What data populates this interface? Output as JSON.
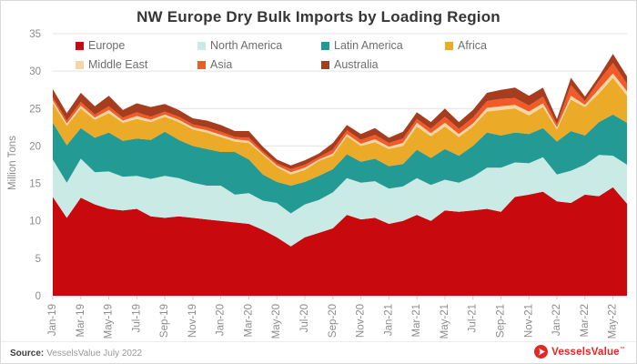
{
  "title": "NW Europe Dry Bulk Imports by Loading Region",
  "source": {
    "label": "Source:",
    "text": "VesselsValue July 2022"
  },
  "logo": {
    "text": "VesselsValue",
    "trademark": "™",
    "color": "#e42627"
  },
  "axis": {
    "tick_color": "#8c8c8c",
    "grid_color": "#e4e4e4",
    "tickmark_color": "#cccccc"
  },
  "chart_data": {
    "type": "area",
    "stacked": true,
    "title": "NW Europe Dry Bulk Imports by Loading Region",
    "xlabel": "",
    "ylabel": "Million Tons",
    "ylim": [
      0,
      35
    ],
    "ytick_step": 5,
    "grid": true,
    "legend_position": "top-left-inside-two-rows",
    "xtick_every": 2,
    "x": [
      "Jan-19",
      "Feb-19",
      "Mar-19",
      "Apr-19",
      "May-19",
      "Jun-19",
      "Jul-19",
      "Aug-19",
      "Sep-19",
      "Oct-19",
      "Nov-19",
      "Dec-19",
      "Jan-20",
      "Feb-20",
      "Mar-20",
      "Apr-20",
      "May-20",
      "Jun-20",
      "Jul-20",
      "Aug-20",
      "Sep-20",
      "Oct-20",
      "Nov-20",
      "Dec-20",
      "Jan-21",
      "Feb-21",
      "Mar-21",
      "Apr-21",
      "May-21",
      "Jun-21",
      "Jul-21",
      "Aug-21",
      "Sep-21",
      "Oct-21",
      "Nov-21",
      "Dec-21",
      "Jan-22",
      "Feb-22",
      "Mar-22",
      "Apr-22",
      "May-22",
      "Jun-22"
    ],
    "series": [
      {
        "name": "Europe",
        "color": "#c80a0f",
        "values": [
          13.2,
          10.4,
          13.1,
          12.2,
          11.6,
          11.4,
          11.6,
          10.6,
          10.4,
          10.6,
          10.4,
          10.2,
          10.0,
          9.8,
          9.6,
          8.8,
          7.8,
          6.6,
          7.8,
          8.4,
          9.0,
          10.8,
          10.2,
          10.4,
          9.6,
          10.0,
          10.8,
          10.0,
          11.4,
          11.2,
          11.4,
          11.6,
          11.2,
          13.2,
          13.5,
          13.9,
          12.6,
          12.4,
          13.5,
          13.3,
          14.5,
          12.3
        ]
      },
      {
        "name": "North America",
        "color": "#c9eae5",
        "values": [
          5.0,
          4.7,
          5.2,
          4.3,
          5.0,
          4.5,
          4.4,
          5.0,
          5.6,
          5.1,
          4.7,
          4.5,
          4.7,
          3.7,
          4.1,
          3.9,
          4.6,
          4.4,
          4.4,
          4.4,
          4.8,
          4.9,
          4.9,
          4.9,
          4.7,
          4.6,
          4.9,
          4.8,
          4.1,
          3.9,
          4.5,
          5.5,
          5.9,
          4.6,
          4.2,
          4.6,
          3.6,
          4.3,
          4.0,
          5.5,
          4.2,
          5.2
        ]
      },
      {
        "name": "Latin America",
        "color": "#239a93",
        "values": [
          4.9,
          5.0,
          4.1,
          4.6,
          5.2,
          4.8,
          5.0,
          5.2,
          5.9,
          5.1,
          4.9,
          4.9,
          4.5,
          5.7,
          4.5,
          3.5,
          2.8,
          3.7,
          3.0,
          3.2,
          3.1,
          3.2,
          2.8,
          3.0,
          3.0,
          3.0,
          3.8,
          3.6,
          4.1,
          3.6,
          4.1,
          4.7,
          4.3,
          4.0,
          3.9,
          3.9,
          4.4,
          5.3,
          3.9,
          4.4,
          5.5,
          5.6
        ]
      },
      {
        "name": "Africa",
        "color": "#ebaa27",
        "values": [
          2.6,
          2.6,
          2.6,
          2.4,
          2.6,
          2.4,
          2.6,
          2.4,
          2.0,
          2.4,
          2.2,
          2.2,
          2.0,
          1.4,
          2.2,
          2.6,
          2.0,
          1.5,
          1.6,
          2.0,
          1.8,
          2.4,
          2.1,
          2.2,
          2.3,
          2.4,
          3.1,
          2.9,
          3.0,
          2.5,
          2.6,
          2.8,
          3.4,
          3.2,
          2.5,
          2.8,
          1.6,
          4.2,
          3.8,
          3.8,
          4.9,
          3.6
        ]
      },
      {
        "name": "Middle East",
        "color": "#f6d7a4",
        "values": [
          0.4,
          0.3,
          0.4,
          0.3,
          0.4,
          0.3,
          0.4,
          0.3,
          0.3,
          0.3,
          0.3,
          0.3,
          0.3,
          0.3,
          0.3,
          0.2,
          0.2,
          0.3,
          0.3,
          0.2,
          0.3,
          0.3,
          0.3,
          0.4,
          0.3,
          0.4,
          0.5,
          0.4,
          0.5,
          0.4,
          0.4,
          0.5,
          0.5,
          0.5,
          0.5,
          0.5,
          0.3,
          0.5,
          0.3,
          0.6,
          0.6,
          0.6
        ]
      },
      {
        "name": "Asia",
        "color": "#f15b2a",
        "values": [
          0.4,
          0.4,
          0.5,
          0.4,
          0.5,
          0.4,
          0.5,
          0.4,
          0.4,
          0.4,
          0.4,
          0.4,
          0.4,
          0.3,
          0.4,
          0.3,
          0.3,
          0.4,
          0.4,
          0.3,
          0.5,
          0.5,
          0.5,
          0.6,
          0.5,
          0.6,
          0.5,
          0.6,
          0.8,
          0.7,
          0.8,
          0.9,
          1.0,
          0.9,
          0.8,
          0.9,
          0.4,
          1.4,
          0.5,
          1.1,
          1.4,
          1.0
        ]
      },
      {
        "name": "Australia",
        "color": "#a63d1e",
        "values": [
          1.1,
          1.0,
          1.2,
          1.1,
          1.4,
          1.0,
          1.2,
          1.3,
          1.0,
          0.9,
          0.8,
          0.9,
          0.9,
          0.8,
          0.9,
          0.6,
          0.5,
          0.5,
          0.6,
          0.5,
          0.9,
          0.7,
          0.8,
          0.9,
          0.7,
          0.9,
          0.9,
          0.9,
          1.1,
          0.9,
          1.0,
          1.1,
          1.2,
          1.4,
          1.3,
          1.2,
          0.7,
          1.0,
          0.6,
          0.6,
          1.2,
          1.0
        ]
      }
    ]
  }
}
